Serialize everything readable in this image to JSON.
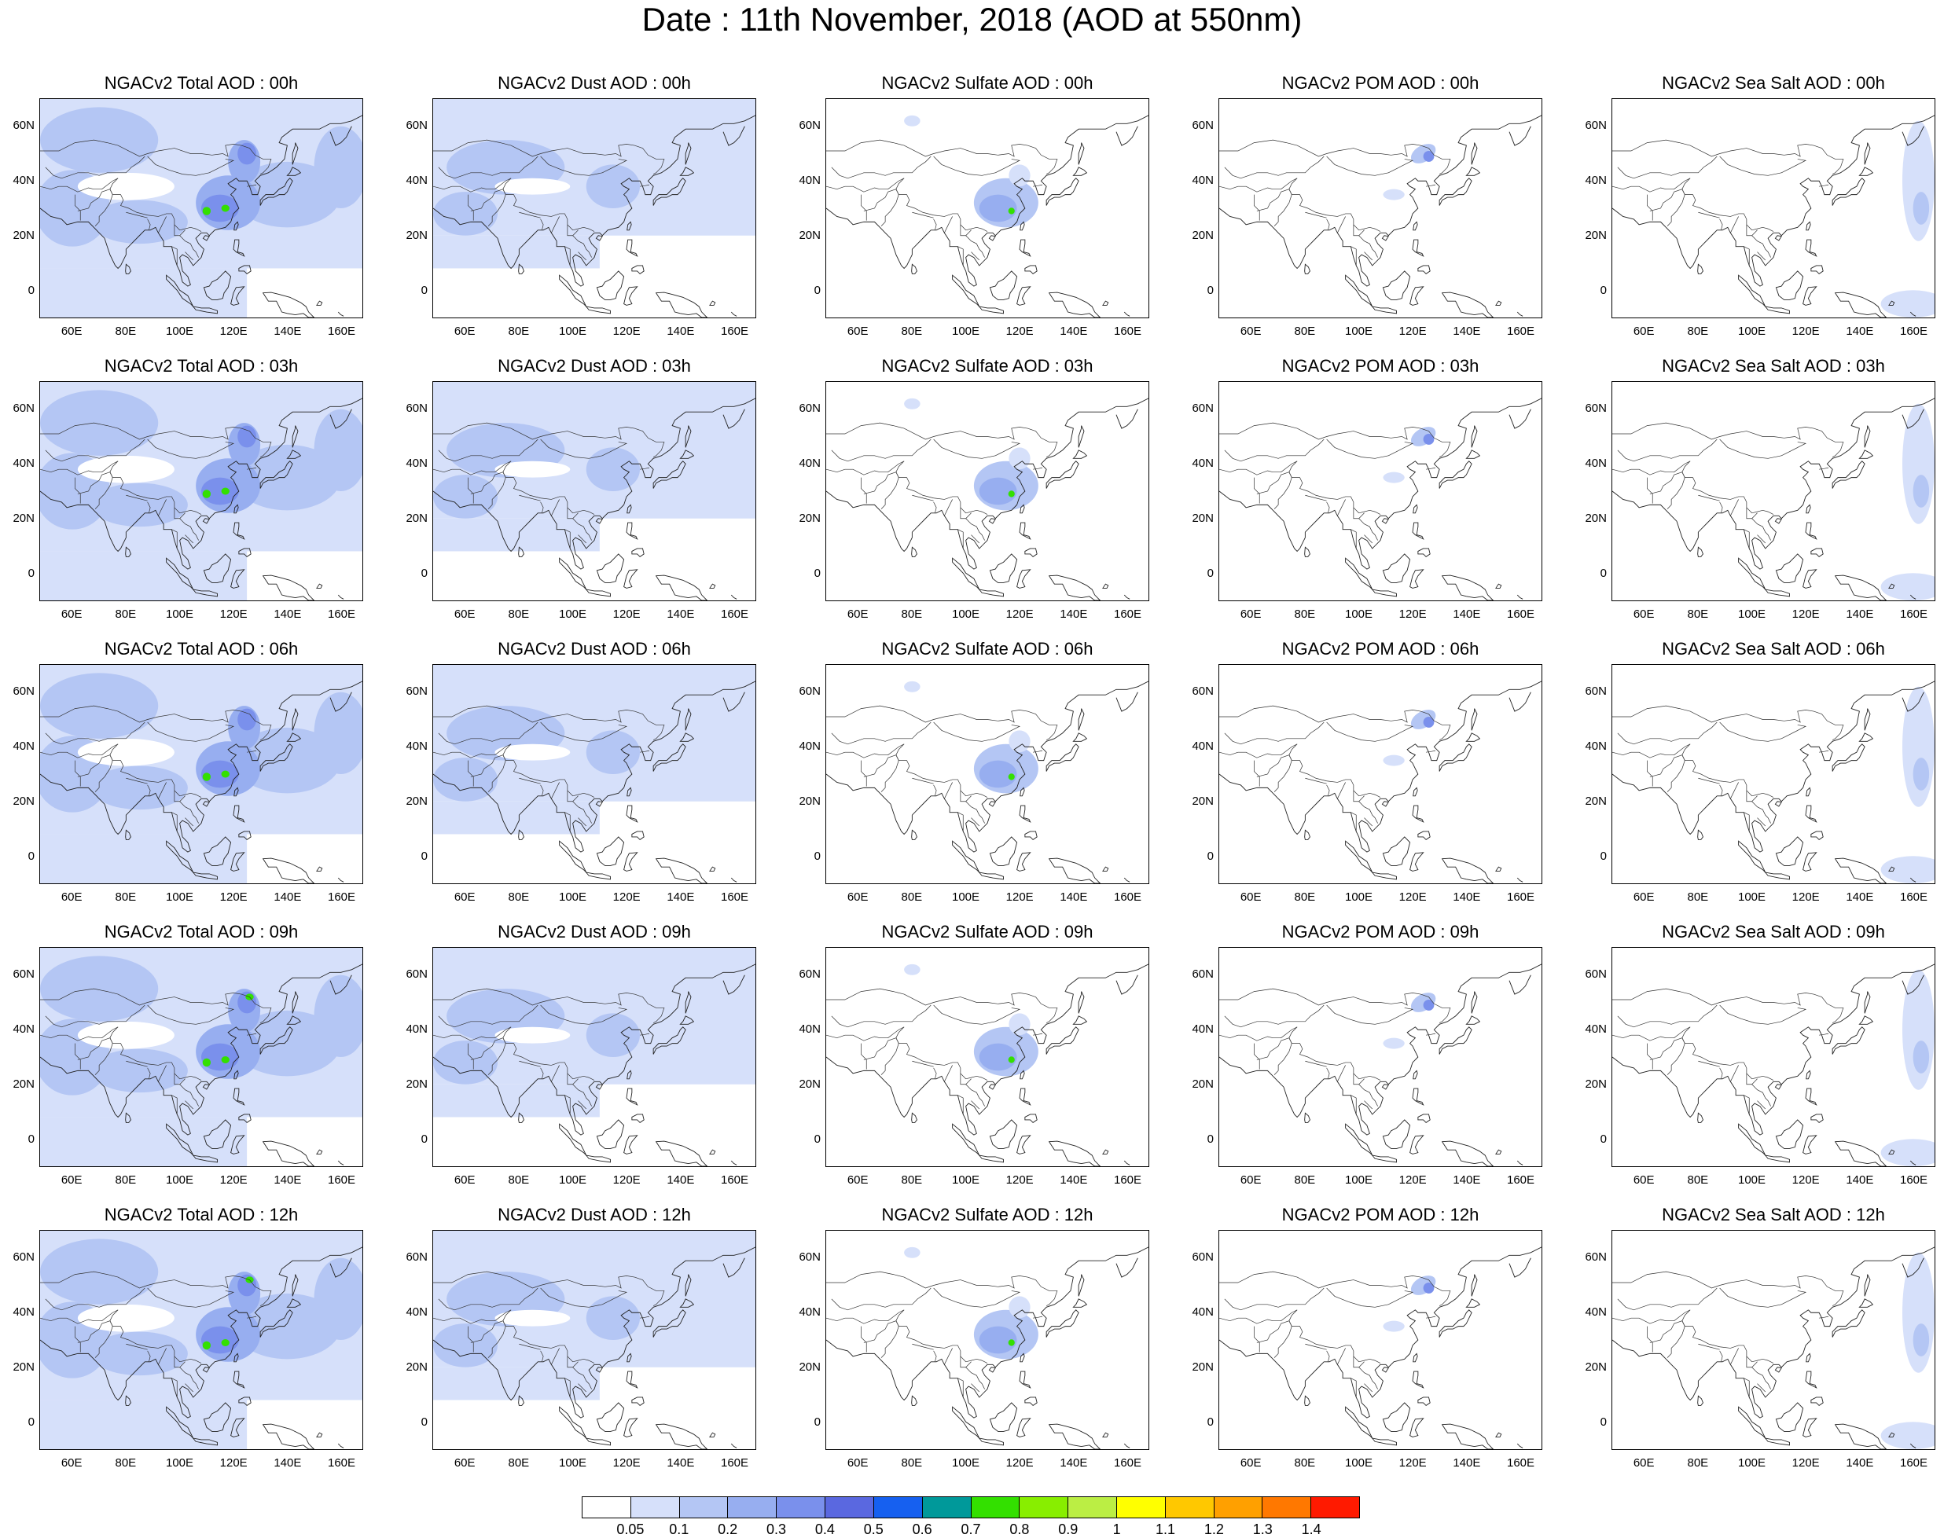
{
  "title": "Date : 11th November, 2018 (AOD at 550nm)",
  "rows": [
    [
      "NGACv2 Total AOD : 00h",
      "NGACv2 Dust AOD : 00h",
      "NGACv2 Sulfate AOD : 00h",
      "NGACv2 POM AOD : 00h",
      "NGACv2 Sea Salt AOD : 00h"
    ],
    [
      "NGACv2 Total AOD : 03h",
      "NGACv2 Dust AOD : 03h",
      "NGACv2 Sulfate AOD : 03h",
      "NGACv2 POM AOD : 03h",
      "NGACv2 Sea Salt AOD : 03h"
    ],
    [
      "NGACv2 Total AOD : 06h",
      "NGACv2 Dust AOD : 06h",
      "NGACv2 Sulfate AOD : 06h",
      "NGACv2 POM AOD : 06h",
      "NGACv2 Sea Salt AOD : 06h"
    ],
    [
      "NGACv2 Total AOD : 09h",
      "NGACv2 Dust AOD : 09h",
      "NGACv2 Sulfate AOD : 09h",
      "NGACv2 POM AOD : 09h",
      "NGACv2 Sea Salt  AOD : 09h"
    ],
    [
      "NGACv2 Total AOD  : 12h",
      "NGACv2 Dust AOD : 12h",
      "NGACv2 Sulfate AOD : 12h",
      "NGACv2 POM  AOD : 12h",
      "NGACv2 Sea Salt  AOD : 12h"
    ]
  ],
  "lat_labels": [
    "60N",
    "40N",
    "20N",
    "0"
  ],
  "lon_labels": [
    "60E",
    "80E",
    "100E",
    "120E",
    "140E",
    "160E"
  ],
  "colorbar": {
    "labels": [
      "0.05",
      "0.1",
      "0.2",
      "0.3",
      "0.4",
      "0.5",
      "0.6",
      "0.7",
      "0.8",
      "0.9",
      "1",
      "1.1",
      "1.2",
      "1.3",
      "1.4"
    ],
    "colors": [
      "#ffffff",
      "#d6e0fa",
      "#b4c6f4",
      "#97aef0",
      "#7a90ec",
      "#5a68e0",
      "#1660f0",
      "#00999a",
      "#33e000",
      "#88ee00",
      "#bbee44",
      "#ffff00",
      "#ffc800",
      "#ffa000",
      "#ff7800",
      "#ff1a00"
    ]
  },
  "palette": {
    "blue1": "#d6e0fa",
    "blue2": "#b4c6f4",
    "blue3": "#97aef0",
    "blue4": "#7a90ec",
    "blue5": "#5a68e0",
    "green": "#33e000",
    "yellow": "#ffff00"
  }
}
